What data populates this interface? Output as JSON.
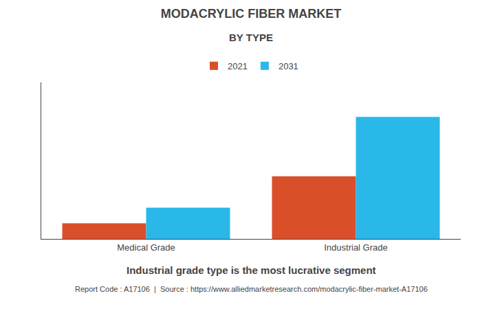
{
  "chart_data": {
    "type": "bar",
    "title": "MODACRYLIC FIBER MARKET",
    "subtitle": "BY TYPE",
    "categories": [
      "Medical Grade",
      "Industrial Grade"
    ],
    "series": [
      {
        "name": "2021",
        "color": "#D94F2A",
        "values": [
          1.0,
          4.0
        ]
      },
      {
        "name": "2031",
        "color": "#29B8E8",
        "values": [
          2.0,
          7.8
        ]
      }
    ],
    "ylim": [
      0,
      10
    ],
    "yticks": [],
    "grid": false,
    "tick_labels": "x",
    "legend": "top",
    "annotations": [
      "Industrial grade type is the most lucrative segment",
      "Report Code : A17106  |  Source : https://www.alliedmarketresearch.com/modacrylic-fiber-market-A17106"
    ]
  }
}
